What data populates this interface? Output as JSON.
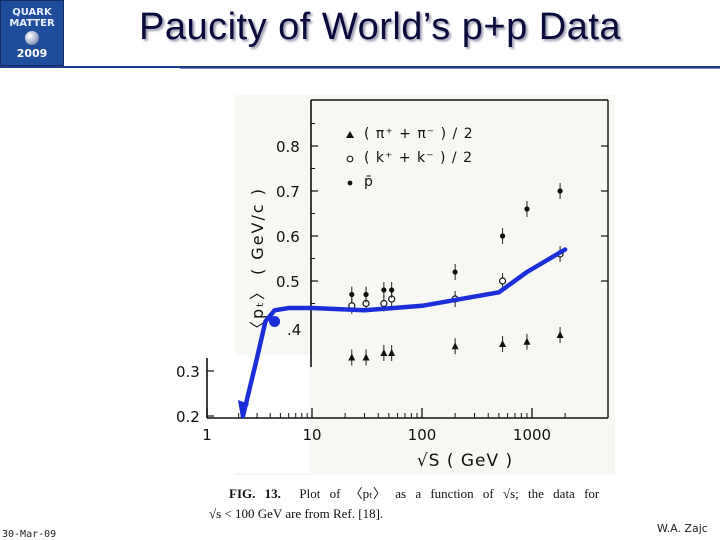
{
  "slide": {
    "title": "Paucity of World’s p+p Data",
    "date": "30-Mar-09",
    "author": "W.A. Zajc"
  },
  "logo": {
    "line1": "QUARK",
    "line2": "MATTER",
    "year": "2009"
  },
  "caption": {
    "label": "FIG. 13.",
    "line1": "Plot of 〈pₜ〉 as a function of √s; the data for",
    "line2": "√s < 100 GeV are from Ref. [18]."
  },
  "chart_data": {
    "type": "scatter",
    "xlabel": "√S  ( GeV )",
    "ylabel": "〈pₜ〉 ( GeV/c )",
    "xscale": "log",
    "xlim": [
      1,
      3000
    ],
    "ylim": [
      0.2,
      0.9
    ],
    "x_ticks": [
      "1",
      "10",
      "100",
      "1000"
    ],
    "y_ticks": [
      "0.2",
      "0.3",
      ".4",
      "0.5",
      "0.6",
      "0.7",
      "0.8"
    ],
    "legend_position": "top-right",
    "series": [
      {
        "name": "( π⁺ + π⁻ ) / 2",
        "marker": "triangle",
        "x": [
          23,
          31,
          45,
          53,
          200,
          540,
          900,
          1800
        ],
        "y": [
          0.33,
          0.33,
          0.34,
          0.34,
          0.355,
          0.36,
          0.365,
          0.38
        ]
      },
      {
        "name": "( k⁺ + k⁻ ) / 2",
        "marker": "open-circle",
        "x": [
          23,
          31,
          45,
          53,
          200,
          540,
          1800
        ],
        "y": [
          0.445,
          0.45,
          0.45,
          0.46,
          0.46,
          0.5,
          0.56
        ]
      },
      {
        "name": "p̄",
        "marker": "dot",
        "x": [
          23,
          31,
          45,
          53,
          200,
          540,
          900,
          1800
        ],
        "y": [
          0.47,
          0.47,
          0.48,
          0.48,
          0.52,
          0.6,
          0.66,
          0.7
        ]
      }
    ],
    "overlay_curve": {
      "color": "#1a2fd8",
      "x": [
        2.2,
        3,
        3.6,
        4.4,
        6,
        10,
        30,
        100,
        500,
        900,
        2000
      ],
      "y": [
        0.2,
        0.33,
        0.41,
        0.435,
        0.44,
        0.44,
        0.435,
        0.445,
        0.475,
        0.52,
        0.57
      ]
    },
    "overlay_marker": {
      "x": 4.4,
      "y": 0.41,
      "color": "#1a2fd8"
    }
  }
}
